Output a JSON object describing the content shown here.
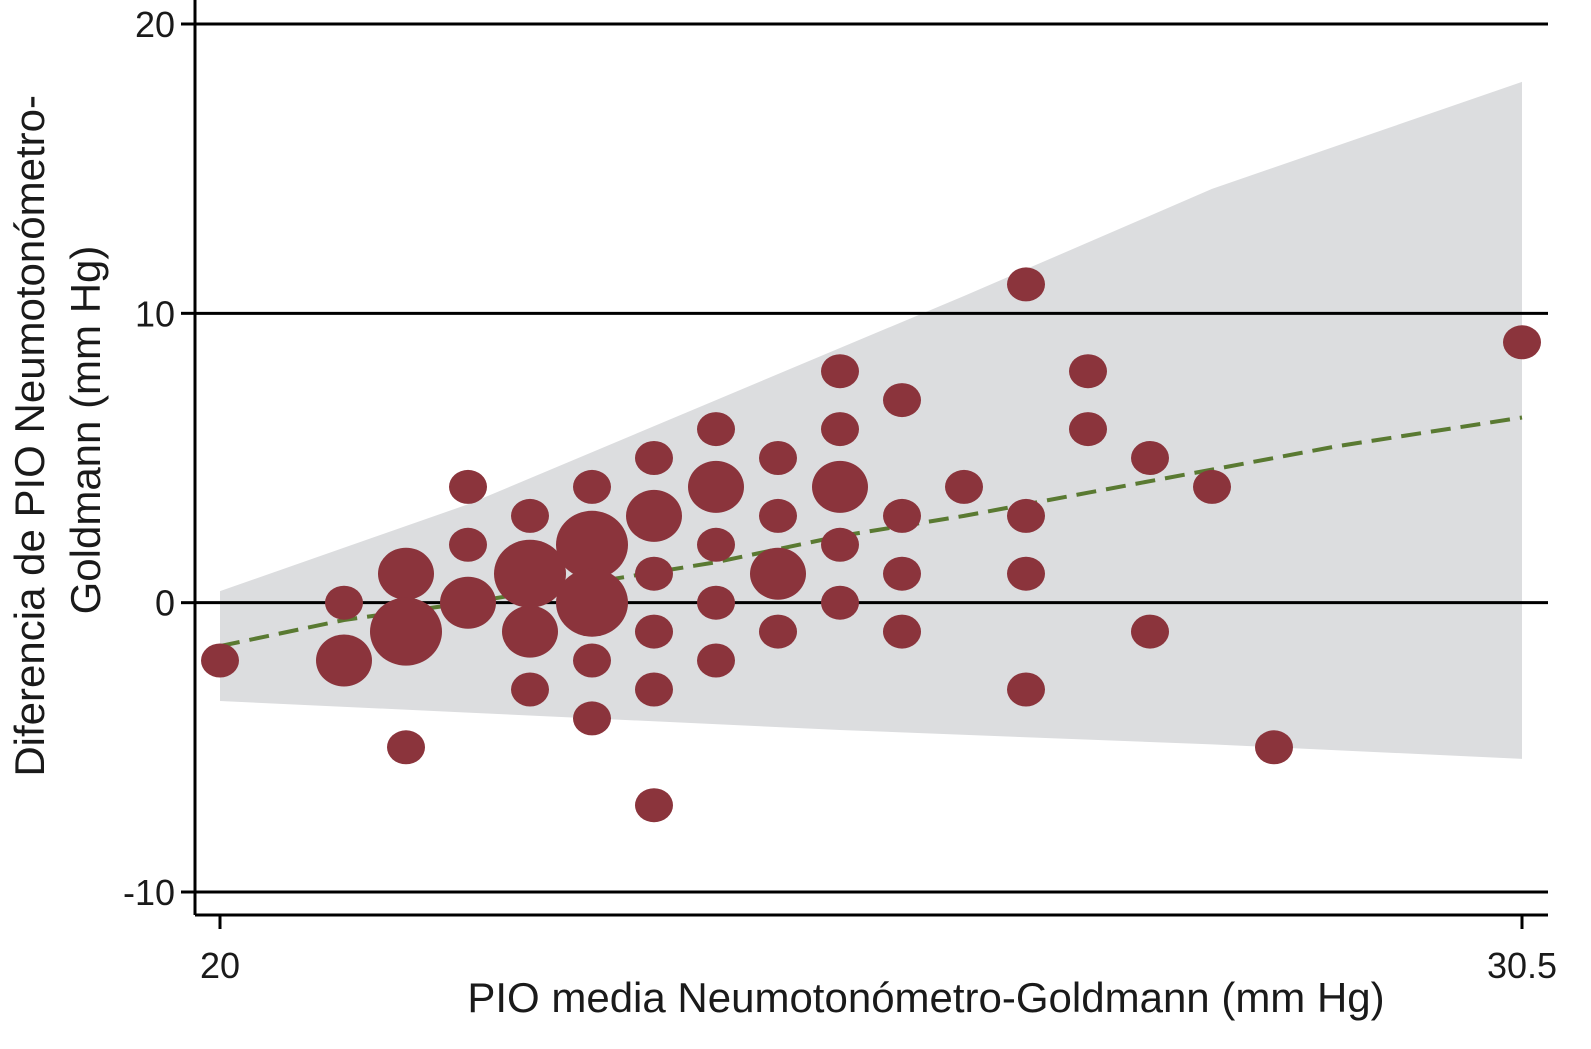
{
  "chart_data": {
    "type": "scatter",
    "xlabel": "PIO media Neumotonómetro-Goldmann (mm Hg)",
    "ylabel_lines": [
      "Diferencia de PIO Neumotonómetro-",
      "Goldmann (mm Hg)"
    ],
    "xlim": [
      20,
      30.5
    ],
    "ylim": [
      -10,
      20
    ],
    "xticks": [
      {
        "value": 20,
        "label": "20"
      },
      {
        "value": 30.5,
        "label": "30.5"
      }
    ],
    "yticks": [
      {
        "value": -10,
        "label": "-10"
      },
      {
        "value": 0,
        "label": "0"
      },
      {
        "value": 10,
        "label": "10"
      },
      {
        "value": 20,
        "label": "20"
      }
    ],
    "grid": "horizontal",
    "colors": {
      "points": "#8b343c",
      "trend": "#5a7a32",
      "band": "#dcdddf",
      "axis": "#000000"
    },
    "points": [
      {
        "x": 20.0,
        "y": -2,
        "n": 1
      },
      {
        "x": 21.0,
        "y": 0,
        "n": 1
      },
      {
        "x": 21.0,
        "y": -2,
        "n": 2
      },
      {
        "x": 21.5,
        "y": 1,
        "n": 2
      },
      {
        "x": 21.5,
        "y": -1,
        "n": 3
      },
      {
        "x": 21.5,
        "y": -5,
        "n": 1
      },
      {
        "x": 22.0,
        "y": 4,
        "n": 1
      },
      {
        "x": 22.0,
        "y": 2,
        "n": 1
      },
      {
        "x": 22.0,
        "y": 0,
        "n": 2
      },
      {
        "x": 22.5,
        "y": 3,
        "n": 1
      },
      {
        "x": 22.5,
        "y": 1,
        "n": 3
      },
      {
        "x": 22.5,
        "y": -1,
        "n": 2
      },
      {
        "x": 22.5,
        "y": -3,
        "n": 1
      },
      {
        "x": 23.0,
        "y": 4,
        "n": 1
      },
      {
        "x": 23.0,
        "y": 2,
        "n": 3
      },
      {
        "x": 23.0,
        "y": 0,
        "n": 3
      },
      {
        "x": 23.0,
        "y": -2,
        "n": 1
      },
      {
        "x": 23.0,
        "y": -4,
        "n": 1
      },
      {
        "x": 23.5,
        "y": 5,
        "n": 1
      },
      {
        "x": 23.5,
        "y": 3,
        "n": 2
      },
      {
        "x": 23.5,
        "y": 1,
        "n": 1
      },
      {
        "x": 23.5,
        "y": -1,
        "n": 1
      },
      {
        "x": 23.5,
        "y": -3,
        "n": 1
      },
      {
        "x": 23.5,
        "y": -7,
        "n": 1
      },
      {
        "x": 24.0,
        "y": 6,
        "n": 1
      },
      {
        "x": 24.0,
        "y": 4,
        "n": 2
      },
      {
        "x": 24.0,
        "y": 2,
        "n": 1
      },
      {
        "x": 24.0,
        "y": 0,
        "n": 1
      },
      {
        "x": 24.0,
        "y": -2,
        "n": 1
      },
      {
        "x": 24.5,
        "y": 5,
        "n": 1
      },
      {
        "x": 24.5,
        "y": 3,
        "n": 1
      },
      {
        "x": 24.5,
        "y": 1,
        "n": 2
      },
      {
        "x": 24.5,
        "y": -1,
        "n": 1
      },
      {
        "x": 25.0,
        "y": 8,
        "n": 1
      },
      {
        "x": 25.0,
        "y": 6,
        "n": 1
      },
      {
        "x": 25.0,
        "y": 4,
        "n": 2
      },
      {
        "x": 25.0,
        "y": 2,
        "n": 1
      },
      {
        "x": 25.0,
        "y": 0,
        "n": 1
      },
      {
        "x": 25.5,
        "y": 7,
        "n": 1
      },
      {
        "x": 25.5,
        "y": 3,
        "n": 1
      },
      {
        "x": 25.5,
        "y": 1,
        "n": 1
      },
      {
        "x": 25.5,
        "y": -1,
        "n": 1
      },
      {
        "x": 26.0,
        "y": 4,
        "n": 1
      },
      {
        "x": 26.5,
        "y": 11,
        "n": 1
      },
      {
        "x": 26.5,
        "y": 3,
        "n": 1
      },
      {
        "x": 26.5,
        "y": 1,
        "n": 1
      },
      {
        "x": 26.5,
        "y": -3,
        "n": 1
      },
      {
        "x": 27.0,
        "y": 8,
        "n": 1
      },
      {
        "x": 27.0,
        "y": 6,
        "n": 1
      },
      {
        "x": 27.5,
        "y": 5,
        "n": 1
      },
      {
        "x": 27.5,
        "y": -1,
        "n": 1
      },
      {
        "x": 28.0,
        "y": 4,
        "n": 1
      },
      {
        "x": 28.5,
        "y": -5,
        "n": 1
      },
      {
        "x": 30.5,
        "y": 9,
        "n": 1
      }
    ],
    "trend_line": [
      {
        "x": 20.0,
        "y": -1.5
      },
      {
        "x": 21.0,
        "y": -0.6
      },
      {
        "x": 22.0,
        "y": 0.0
      },
      {
        "x": 23.0,
        "y": 0.7
      },
      {
        "x": 24.0,
        "y": 1.4
      },
      {
        "x": 25.0,
        "y": 2.3
      },
      {
        "x": 26.0,
        "y": 3.0
      },
      {
        "x": 27.0,
        "y": 3.8
      },
      {
        "x": 28.0,
        "y": 4.6
      },
      {
        "x": 29.0,
        "y": 5.4
      },
      {
        "x": 30.5,
        "y": 6.4
      }
    ],
    "band_upper": [
      {
        "x": 20.0,
        "y": 0.4
      },
      {
        "x": 22.0,
        "y": 3.4
      },
      {
        "x": 24.0,
        "y": 7.0
      },
      {
        "x": 26.0,
        "y": 10.6
      },
      {
        "x": 28.0,
        "y": 14.3
      },
      {
        "x": 30.5,
        "y": 18.0
      }
    ],
    "band_lower": [
      {
        "x": 20.0,
        "y": -3.4
      },
      {
        "x": 22.0,
        "y": -3.8
      },
      {
        "x": 25.0,
        "y": -4.4
      },
      {
        "x": 28.0,
        "y": -4.9
      },
      {
        "x": 30.5,
        "y": -5.4
      }
    ]
  }
}
